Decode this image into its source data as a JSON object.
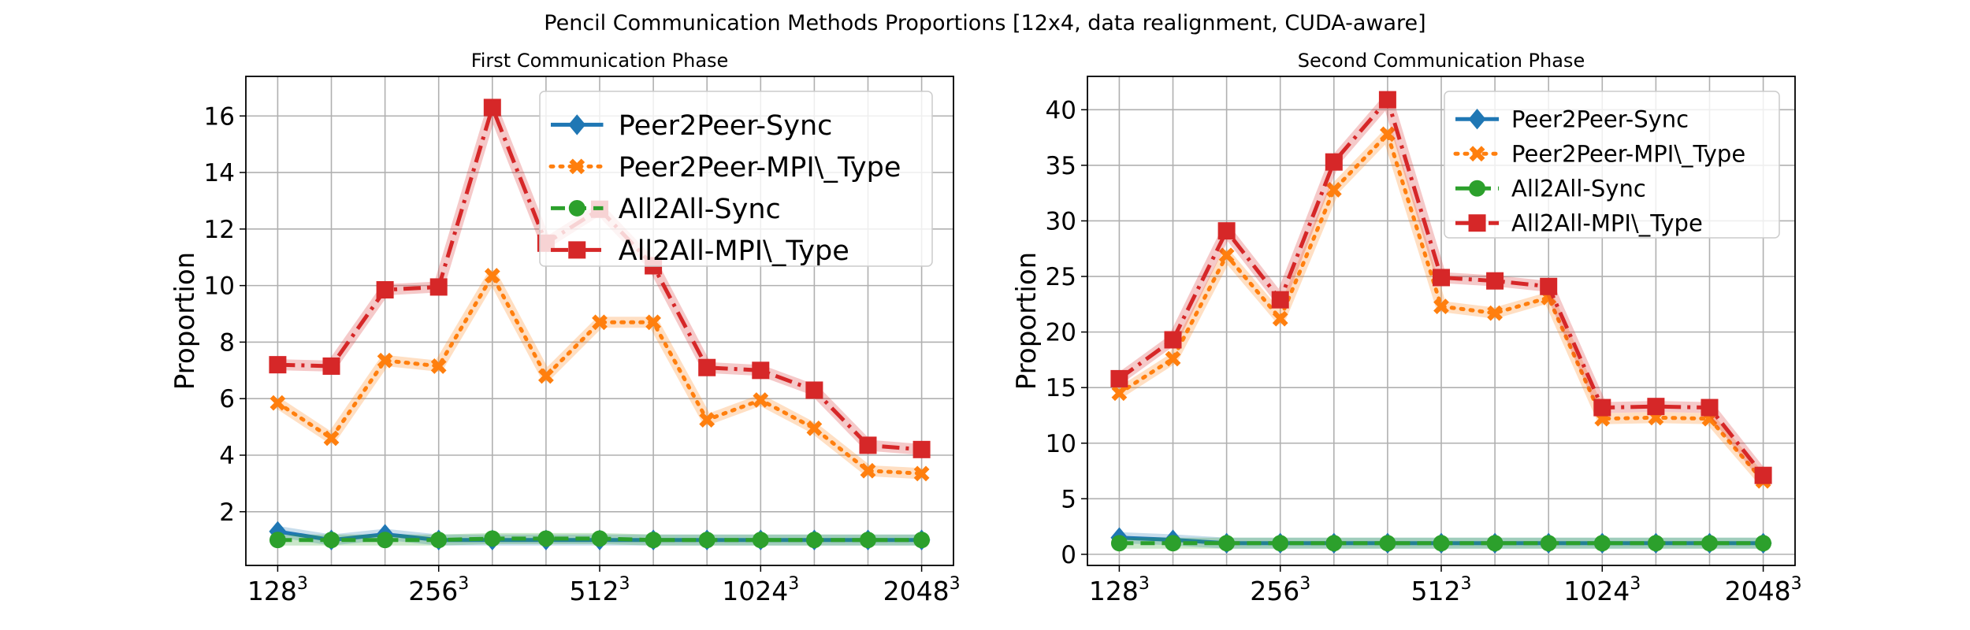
{
  "figure": {
    "suptitle": "Pencil Communication Methods Proportions [12x4, data realignment, CUDA-aware]"
  },
  "colors": {
    "Peer2Peer-Sync": "#1f77b4",
    "Peer2Peer-MPI\\_Type": "#ff7f0e",
    "All2All-Sync": "#2ca02c",
    "All2All-MPI\\_Type": "#d62728"
  },
  "chart_data": [
    {
      "type": "line",
      "title": "First Communication Phase",
      "xlabel": "",
      "ylabel": "Proportion",
      "grid": true,
      "legend_position": "top-right",
      "ylim": [
        0.1,
        17.4
      ],
      "y_ticks": [
        2,
        4,
        6,
        8,
        10,
        12,
        14,
        16
      ],
      "x_ticks": [
        {
          "base": "128",
          "exp": "3",
          "index": 0
        },
        {
          "base": "256",
          "exp": "3",
          "index": 3
        },
        {
          "base": "512",
          "exp": "3",
          "index": 6
        },
        {
          "base": "1024",
          "exp": "3",
          "index": 9
        },
        {
          "base": "2048",
          "exp": "3",
          "index": 12
        }
      ],
      "n_points": 13,
      "series": [
        {
          "name": "Peer2Peer-Sync",
          "marker": "diamond",
          "dash": "solid",
          "values": [
            1.3,
            1.0,
            1.2,
            1.0,
            1.0,
            1.0,
            1.0,
            1.0,
            1.0,
            1.0,
            1.0,
            1.0,
            1.0
          ]
        },
        {
          "name": "Peer2Peer-MPI\\_Type",
          "marker": "x",
          "dash": "dotted",
          "values": [
            5.85,
            4.6,
            7.35,
            7.15,
            10.35,
            6.8,
            8.7,
            8.7,
            5.25,
            5.95,
            4.95,
            3.45,
            3.35
          ]
        },
        {
          "name": "All2All-Sync",
          "marker": "circle",
          "dash": "dashed",
          "values": [
            1.0,
            1.0,
            1.0,
            1.0,
            1.05,
            1.05,
            1.05,
            1.0,
            1.0,
            1.0,
            1.0,
            1.0,
            1.0
          ]
        },
        {
          "name": "All2All-MPI\\_Type",
          "marker": "square",
          "dash": "dashdot",
          "values": [
            7.2,
            7.15,
            9.85,
            9.95,
            16.3,
            11.5,
            12.7,
            10.7,
            7.1,
            7.0,
            6.3,
            4.35,
            4.2
          ]
        }
      ]
    },
    {
      "type": "line",
      "title": "Second Communication Phase",
      "xlabel": "",
      "ylabel": "Proportion",
      "grid": true,
      "legend_position": "top-right",
      "ylim": [
        -1.0,
        43.0
      ],
      "y_ticks": [
        0,
        5,
        10,
        15,
        20,
        25,
        30,
        35,
        40
      ],
      "x_ticks": [
        {
          "base": "128",
          "exp": "3",
          "index": 0
        },
        {
          "base": "256",
          "exp": "3",
          "index": 3
        },
        {
          "base": "512",
          "exp": "3",
          "index": 6
        },
        {
          "base": "1024",
          "exp": "3",
          "index": 9
        },
        {
          "base": "2048",
          "exp": "3",
          "index": 12
        }
      ],
      "n_points": 13,
      "series": [
        {
          "name": "Peer2Peer-Sync",
          "marker": "diamond",
          "dash": "solid",
          "values": [
            1.5,
            1.3,
            1.0,
            1.0,
            1.0,
            1.0,
            1.0,
            1.0,
            1.0,
            1.0,
            1.0,
            1.0,
            1.0
          ]
        },
        {
          "name": "Peer2Peer-MPI\\_Type",
          "marker": "x",
          "dash": "dotted",
          "values": [
            14.5,
            17.6,
            26.9,
            21.2,
            32.8,
            37.8,
            22.3,
            21.7,
            23.1,
            12.2,
            12.3,
            12.2,
            6.6
          ]
        },
        {
          "name": "All2All-Sync",
          "marker": "circle",
          "dash": "dashed",
          "values": [
            1.0,
            1.0,
            1.0,
            1.0,
            1.0,
            1.0,
            1.0,
            1.0,
            1.0,
            1.0,
            1.0,
            1.0,
            1.0
          ]
        },
        {
          "name": "All2All-MPI\\_Type",
          "marker": "square",
          "dash": "dashdot",
          "values": [
            15.8,
            19.3,
            29.1,
            22.9,
            35.3,
            40.9,
            24.9,
            24.6,
            24.1,
            13.2,
            13.3,
            13.2,
            7.1
          ]
        }
      ]
    }
  ]
}
